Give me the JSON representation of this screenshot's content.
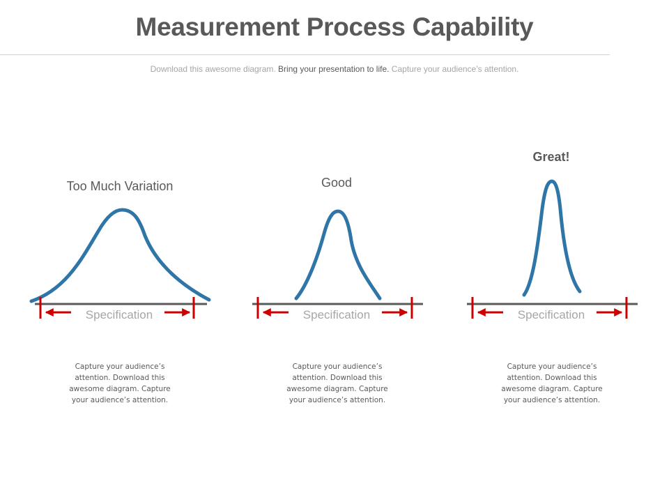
{
  "header": {
    "title": "Measurement Process Capability",
    "subtitle_part1": "Download this awesome diagram. ",
    "subtitle_part2": "Bring your presentation to life.",
    "subtitle_part3": " Capture your audience’s attention."
  },
  "colors": {
    "curve": "#2e75a8",
    "baseline": "#595959",
    "spec_marker": "#cc0000",
    "text_muted": "#a6a6a6"
  },
  "panels": [
    {
      "label": "Too Much Variation",
      "spec_label": "Specification",
      "description": "Capture your audience’s attention. Download this awesome diagram. Capture your audience’s attention."
    },
    {
      "label": "Good",
      "spec_label": "Specification",
      "description": "Capture your audience’s attention. Download this awesome diagram. Capture your audience’s attention."
    },
    {
      "label": "Great!",
      "spec_label": "Specification",
      "description": "Capture your audience’s attention. Download this awesome diagram. Capture your audience’s attention."
    }
  ]
}
